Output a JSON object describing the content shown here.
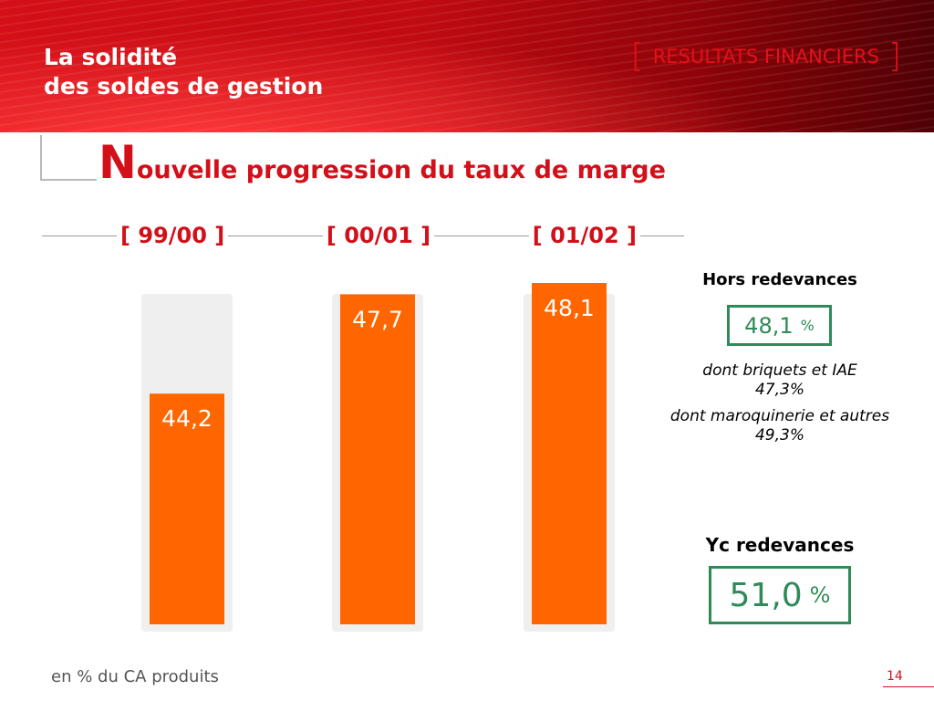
{
  "banner": {
    "title_line1": "La solidité",
    "title_line2": "des soldes de gestion",
    "section_open": "[",
    "section_label": "RESULTATS FINANCIERS",
    "section_close": "]"
  },
  "heading": {
    "initial": "N",
    "rest": "ouvelle progression du taux de marge"
  },
  "chart_data": {
    "type": "bar",
    "categories": [
      "[ 99/00 ]",
      "[ 00/01 ]",
      "[ 01/02 ]"
    ],
    "values": [
      44.2,
      47.7,
      48.1
    ],
    "value_labels": [
      "44,2",
      "47,7",
      "48,1"
    ],
    "title": "",
    "xlabel": "",
    "ylabel": "",
    "bar_color": "#ff6600",
    "track_color": "#efefef"
  },
  "side": {
    "hors_heading": "Hors redevances",
    "hors_value": "48,1",
    "hors_unit": "%",
    "detail1_label": "dont briquets et IAE",
    "detail1_value": "47,3%",
    "detail2_label": "dont maroquinerie et autres",
    "detail2_value": "49,3%",
    "yc_heading": "Yc redevances",
    "yc_value": "51,0",
    "yc_unit": "%"
  },
  "footer": {
    "note": "en % du CA produits",
    "page_number": "14"
  },
  "colors": {
    "brand_red": "#d2101a",
    "green": "#2e8b57"
  }
}
